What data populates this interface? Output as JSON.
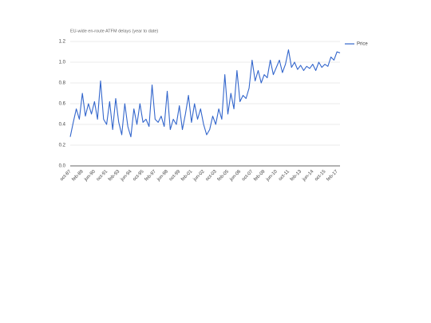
{
  "chart_data": {
    "type": "line",
    "title": "EU-wide en-route ATFM delays (year to date)",
    "categories": [
      "oct-87",
      null,
      null,
      null,
      "feb-89",
      null,
      null,
      null,
      "jun-90",
      null,
      null,
      null,
      "oct-91",
      null,
      null,
      null,
      "feb-93",
      null,
      null,
      null,
      "jun-94",
      null,
      null,
      null,
      "oct-95",
      null,
      null,
      null,
      "feb-97",
      null,
      null,
      null,
      "jun-98",
      null,
      null,
      null,
      "oct-99",
      null,
      null,
      null,
      "feb-01",
      null,
      null,
      null,
      "jun-02",
      null,
      null,
      null,
      "oct-03",
      null,
      null,
      null,
      "feb-05",
      null,
      null,
      null,
      "jun-06",
      null,
      null,
      null,
      "oct-07",
      null,
      null,
      null,
      "feb-09",
      null,
      null,
      null,
      "jun-10",
      null,
      null,
      null,
      "oct-11",
      null,
      null,
      null,
      "feb-13",
      null,
      null,
      null,
      "jun-14",
      null,
      null,
      null,
      "oct-15",
      null,
      null,
      null,
      "feb-17",
      null
    ],
    "series": [
      {
        "name": "Price",
        "color": "#3366cc",
        "values": [
          0.28,
          0.42,
          0.55,
          0.45,
          0.7,
          0.48,
          0.6,
          0.5,
          0.62,
          0.45,
          0.82,
          0.45,
          0.4,
          0.62,
          0.35,
          0.65,
          0.42,
          0.3,
          0.6,
          0.38,
          0.28,
          0.55,
          0.4,
          0.6,
          0.42,
          0.45,
          0.38,
          0.78,
          0.45,
          0.42,
          0.48,
          0.38,
          0.72,
          0.35,
          0.45,
          0.4,
          0.58,
          0.35,
          0.5,
          0.68,
          0.42,
          0.6,
          0.45,
          0.55,
          0.4,
          0.3,
          0.35,
          0.48,
          0.4,
          0.55,
          0.45,
          0.88,
          0.5,
          0.7,
          0.55,
          0.92,
          0.62,
          0.68,
          0.65,
          0.75,
          1.02,
          0.82,
          0.92,
          0.8,
          0.88,
          0.85,
          1.02,
          0.88,
          0.95,
          1.02,
          0.9,
          0.98,
          1.12,
          0.95,
          1.0,
          0.93,
          0.97,
          0.92,
          0.96,
          0.94,
          0.98,
          0.92,
          1.0,
          0.95,
          0.98,
          0.96,
          1.05,
          1.02,
          1.1,
          1.09
        ]
      }
    ],
    "ylim": [
      0,
      1.2
    ],
    "yticks": [
      {
        "value": 0,
        "label": "0.0"
      },
      0.2,
      0.4,
      0.6,
      0.8,
      {
        "value": 1,
        "label": "1.0"
      },
      1.2
    ],
    "grid": true,
    "legend": "right"
  }
}
